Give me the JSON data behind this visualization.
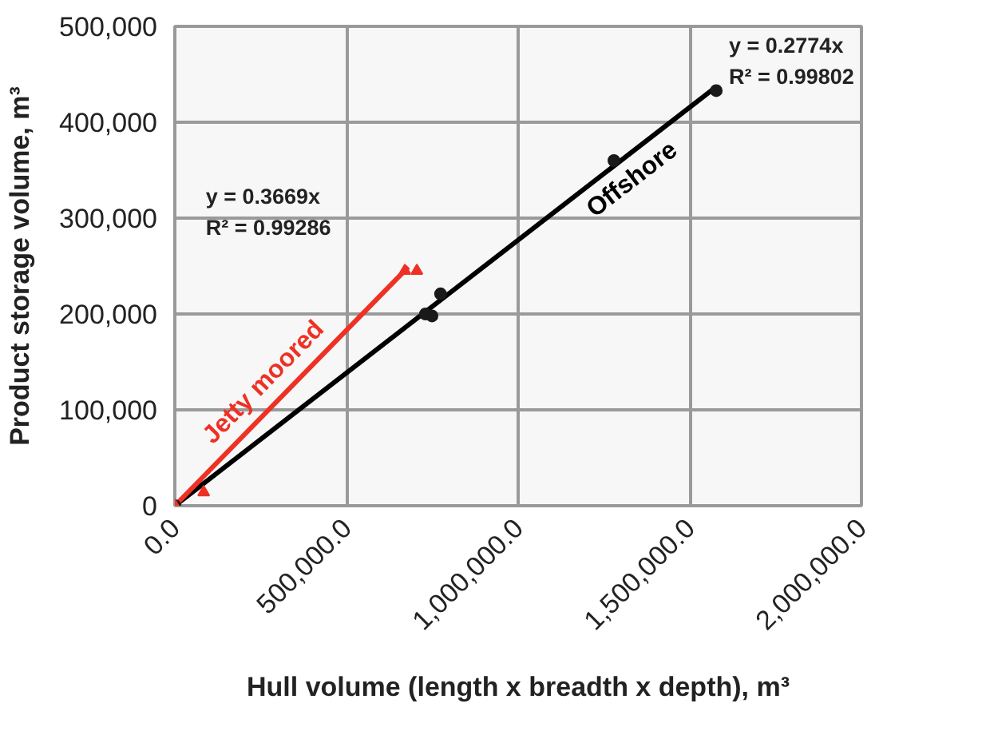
{
  "chart_data": {
    "type": "scatter",
    "xlabel": "Hull volume (length x breadth x depth), m³",
    "ylabel": "Product storage volume, m³",
    "xlim": [
      0,
      2000000
    ],
    "ylim": [
      0,
      500000
    ],
    "xticks": [
      {
        "value": 0,
        "label": "0.0"
      },
      {
        "value": 500000,
        "label": "500,000.0"
      },
      {
        "value": 1000000,
        "label": "1,000,000.0"
      },
      {
        "value": 1500000,
        "label": "1,500,000.0"
      },
      {
        "value": 2000000,
        "label": "2,000,000.0"
      }
    ],
    "yticks": [
      {
        "value": 0,
        "label": "0"
      },
      {
        "value": 100000,
        "label": "100,000"
      },
      {
        "value": 200000,
        "label": "200,000"
      },
      {
        "value": 300000,
        "label": "300,000"
      },
      {
        "value": 400000,
        "label": "400,000"
      },
      {
        "value": 500000,
        "label": "500,000"
      }
    ],
    "grid": true,
    "series": [
      {
        "color": "#1a1a1a",
        "marker": "circle",
        "x": [
          0,
          730000,
          749000,
          774000,
          1279000,
          1577000
        ],
        "values": [
          0,
          200000,
          198000,
          221000,
          360000,
          433000
        ]
      },
      {
        "color": "#ee3124",
        "marker": "triangle",
        "x": [
          0,
          84000,
          670000,
          705000
        ],
        "values": [
          0,
          14000,
          245000,
          245000
        ]
      },
      {
        "type": "line",
        "name": "Offshore",
        "color": "#000000",
        "x": [
          0,
          1577000
        ],
        "values": [
          0,
          437000
        ]
      },
      {
        "type": "line",
        "name": "Jetty moored",
        "color": "#ee3124",
        "x": [
          0,
          680000
        ],
        "values": [
          0,
          249000
        ]
      }
    ],
    "annotations": [
      "y = 0.2774x\nR² = 0.99802",
      "y = 0.3669x\nR² = 0.99286"
    ]
  }
}
